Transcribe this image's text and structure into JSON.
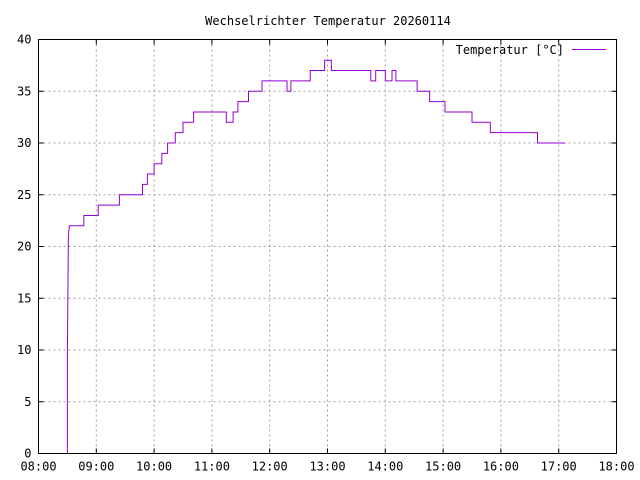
{
  "chart_data": {
    "type": "line",
    "title": "Wechselrichter Temperatur 20260114",
    "xlabel": "",
    "ylabel": "",
    "xlim": [
      "08:00",
      "18:00"
    ],
    "ylim": [
      0,
      40
    ],
    "grid": true,
    "legend_position": "top-right",
    "x_tick_labels": [
      "08:00",
      "09:00",
      "10:00",
      "11:00",
      "12:00",
      "13:00",
      "14:00",
      "15:00",
      "16:00",
      "17:00",
      "18:00"
    ],
    "y_tick_labels": [
      "0",
      "5",
      "10",
      "15",
      "20",
      "25",
      "30",
      "35",
      "40"
    ],
    "series": [
      {
        "name": "Temperatur [°C]",
        "color": "#9400d3",
        "x": [
          "08:30",
          "08:30",
          "08:31",
          "08:32",
          "08:47",
          "08:47",
          "09:02",
          "09:02",
          "09:24",
          "09:24",
          "09:48",
          "09:48",
          "09:53",
          "09:53",
          "10:00",
          "10:00",
          "10:08",
          "10:08",
          "10:14",
          "10:14",
          "10:22",
          "10:22",
          "10:30",
          "10:30",
          "10:41",
          "10:41",
          "11:15",
          "11:15",
          "11:22",
          "11:22",
          "11:27",
          "11:27",
          "11:38",
          "11:38",
          "11:52",
          "11:52",
          "12:18",
          "12:18",
          "12:22",
          "12:22",
          "12:42",
          "12:42",
          "12:57",
          "12:57",
          "13:04",
          "13:04",
          "13:45",
          "13:45",
          "13:50",
          "13:50",
          "14:00",
          "14:00",
          "14:07",
          "14:07",
          "14:11",
          "14:11",
          "14:13",
          "14:13",
          "14:33",
          "14:33",
          "14:46",
          "14:46",
          "15:02",
          "15:02",
          "15:30",
          "15:30",
          "15:49",
          "15:49",
          "16:38",
          "16:38",
          "17:07"
        ],
        "y": [
          0,
          10,
          21,
          22,
          22,
          23,
          23,
          24,
          24,
          25,
          25,
          26,
          26,
          27,
          27,
          28,
          28,
          29,
          29,
          30,
          30,
          31,
          31,
          32,
          32,
          33,
          33,
          32,
          32,
          33,
          33,
          34,
          34,
          35,
          35,
          36,
          36,
          35,
          35,
          36,
          36,
          37,
          37,
          38,
          38,
          37,
          37,
          36,
          36,
          37,
          37,
          36,
          36,
          37,
          37,
          36,
          36,
          36,
          36,
          35,
          35,
          34,
          34,
          33,
          33,
          32,
          32,
          31,
          31,
          30,
          30
        ]
      }
    ]
  }
}
